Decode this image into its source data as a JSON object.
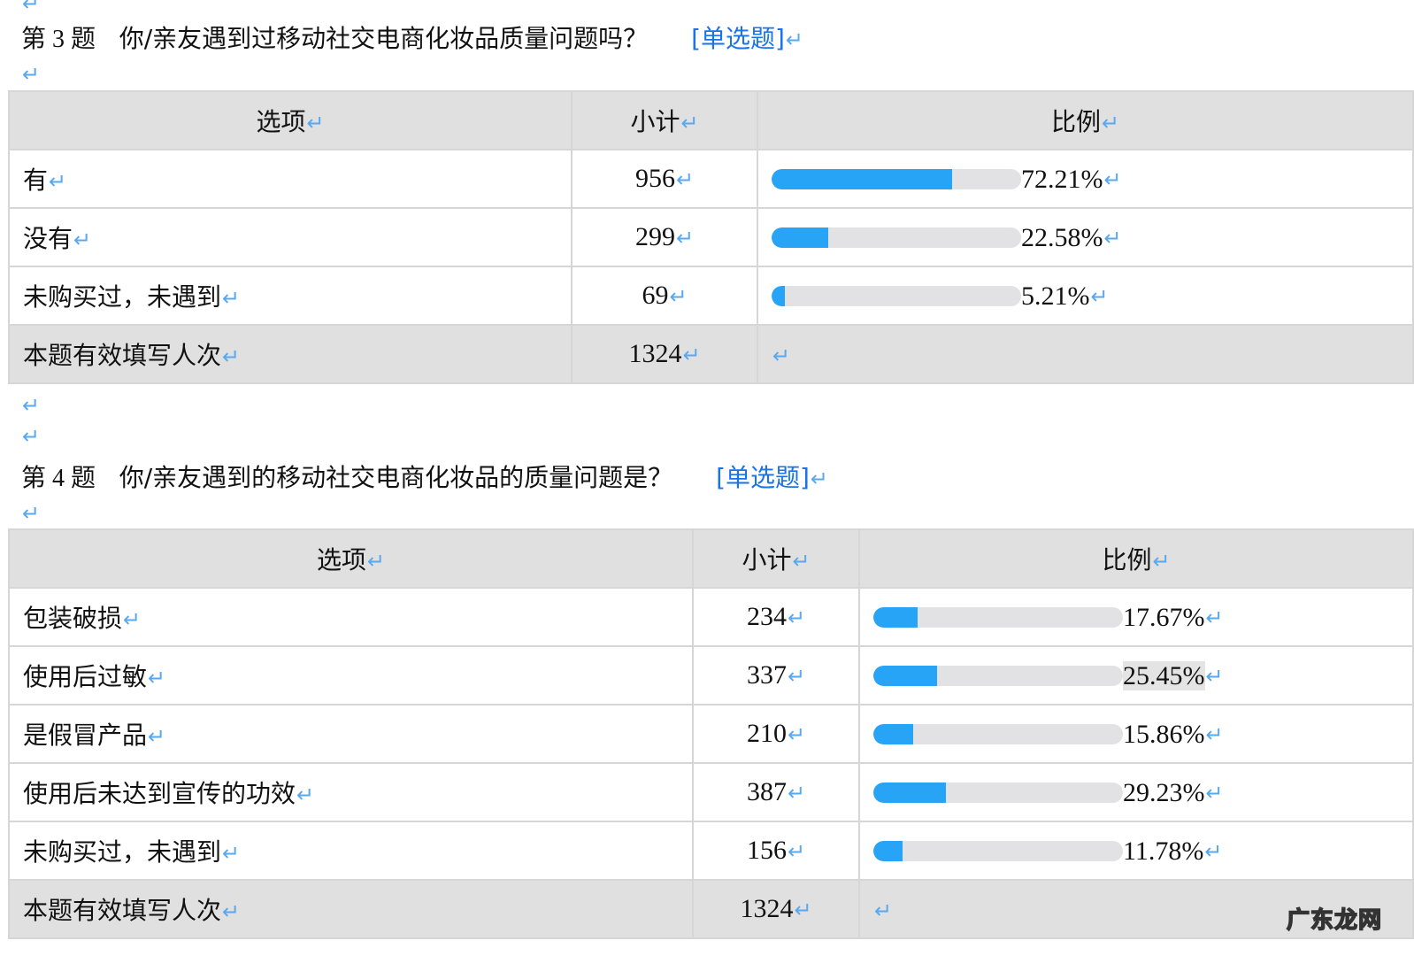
{
  "return_mark": "↵",
  "questions": [
    {
      "number": "第 3 题",
      "text": "你/亲友遇到过移动社交电商化妆品质量问题吗？",
      "type": "[单选题]",
      "headers": {
        "option": "选项",
        "count": "小计",
        "ratio": "比例"
      },
      "rows": [
        {
          "option": "有",
          "count": "956",
          "percent": "72.21%",
          "value": 72.21
        },
        {
          "option": "没有",
          "count": "299",
          "percent": "22.58%",
          "value": 22.58
        },
        {
          "option": "未购买过，未遇到",
          "count": "69",
          "percent": "5.21%",
          "value": 5.21
        }
      ],
      "total": {
        "label": "本题有效填写人次",
        "count": "1324"
      }
    },
    {
      "number": "第 4 题",
      "text": "你/亲友遇到的移动社交电商化妆品的质量问题是？",
      "type": "[单选题]",
      "headers": {
        "option": "选项",
        "count": "小计",
        "ratio": "比例"
      },
      "rows": [
        {
          "option": "包装破损",
          "count": "234",
          "percent": "17.67%",
          "value": 17.67
        },
        {
          "option": "使用后过敏",
          "count": "337",
          "percent": "25.45%",
          "value": 25.45
        },
        {
          "option": "是假冒产品",
          "count": "210",
          "percent": "15.86%",
          "value": 15.86
        },
        {
          "option": "使用后未达到宣传的功效",
          "count": "387",
          "percent": "29.23%",
          "value": 29.23
        },
        {
          "option": "未购买过，未遇到",
          "count": "156",
          "percent": "11.78%",
          "value": 11.78
        }
      ],
      "total": {
        "label": "本题有效填写人次",
        "count": "1324"
      }
    }
  ],
  "colors": {
    "bar_fill": "#27a4f5",
    "bar_track": "#e2e2e4",
    "question_type": "#1a73e8",
    "header_bg": "#e0e0e0"
  },
  "watermark": "广东龙网"
}
